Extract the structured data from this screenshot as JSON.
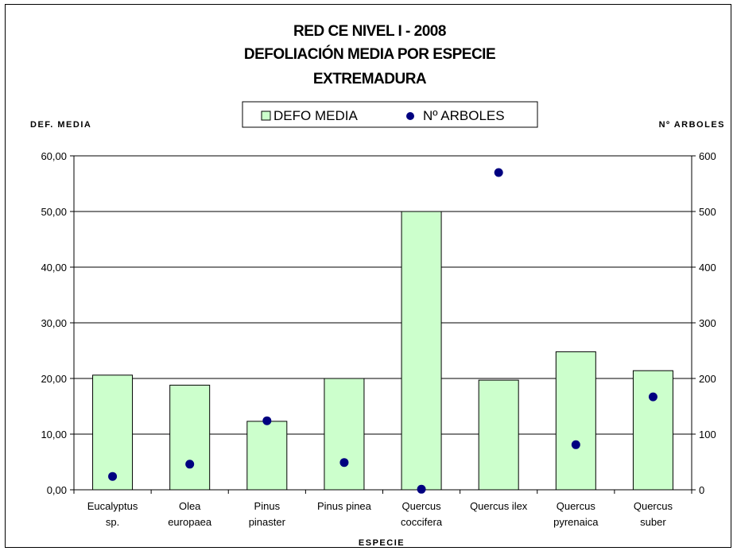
{
  "chart_data": {
    "type": "bar",
    "title_lines": [
      "RED CE NIVEL I - 2008",
      "DEFOLIACIÓN MEDIA POR ESPECIE",
      "EXTREMADURA"
    ],
    "xlabel": "ESPECIE",
    "ylabel_left": "DEF. MEDIA",
    "ylabel_right": "Nº ARBOLES",
    "categories": [
      [
        "Eucalyptus",
        "sp."
      ],
      [
        "Olea",
        "europaea"
      ],
      [
        "Pinus",
        "pinaster"
      ],
      [
        "Pinus pinea"
      ],
      [
        "Quercus",
        "coccifera"
      ],
      [
        "Quercus ilex"
      ],
      [
        "Quercus",
        "pyrenaica"
      ],
      [
        "Quercus",
        "suber"
      ]
    ],
    "series": [
      {
        "name": "DEFO MEDIA",
        "type": "bar",
        "axis": "left",
        "values": [
          20.6,
          18.8,
          12.3,
          20.0,
          50.0,
          19.7,
          24.8,
          21.4
        ]
      },
      {
        "name": "Nº ARBOLES",
        "type": "scatter",
        "axis": "right",
        "values": [
          24,
          46,
          124,
          49,
          1,
          570,
          81,
          167
        ]
      }
    ],
    "ylim_left": [
      0,
      60
    ],
    "ylim_right": [
      0,
      600
    ],
    "yticks_left": [
      "0,00",
      "10,00",
      "20,00",
      "30,00",
      "40,00",
      "50,00",
      "60,00"
    ],
    "yticks_right": [
      "0",
      "100",
      "200",
      "300",
      "400",
      "500",
      "600"
    ],
    "grid": true,
    "legend_position": "top-center",
    "colors": {
      "bar_fill": "#ccffcc",
      "bar_stroke": "#000000",
      "marker": "#000080",
      "grid": "#000000"
    }
  }
}
